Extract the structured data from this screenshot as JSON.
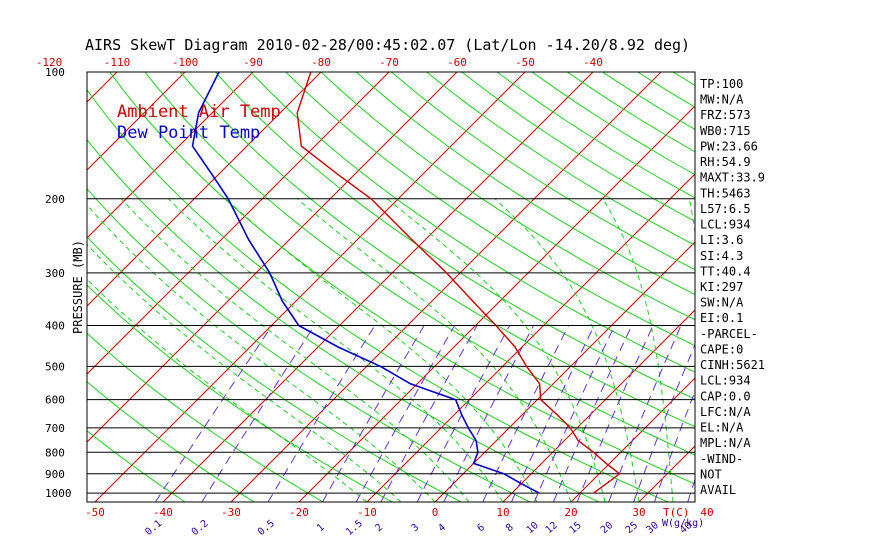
{
  "chart_data": {
    "type": "line",
    "title": "AIRS SkewT Diagram 2010-02-28/00:45:02.07 (Lat/Lon -14.20/8.92 deg)",
    "ylabel": "PRESSURE (MB)",
    "xlabel_bottom": "T(C)",
    "mixing_ratio_unit": "W(g/kg)",
    "pressure_ticks": [
      100,
      200,
      300,
      400,
      500,
      600,
      700,
      800,
      900,
      1000
    ],
    "pressure_range": [
      100,
      1050
    ],
    "top_temp_ticks": [
      -120,
      -110,
      -100,
      -90,
      -80,
      -70,
      -60,
      -50,
      -40
    ],
    "bottom_temp_ticks": [
      -50,
      -40,
      -30,
      -20,
      -10,
      0,
      10,
      20,
      30,
      40
    ],
    "mixing_ratio_ticks": [
      "0.1",
      "0.2",
      "0.5",
      "1",
      "1.5",
      "2",
      "3",
      "4",
      "6",
      "8",
      "10",
      "12",
      "15",
      "20",
      "25",
      "30",
      "40"
    ],
    "mixing_ratio_values": [
      0.1,
      0.2,
      0.5,
      1,
      1.5,
      2,
      3,
      4,
      6,
      8,
      10,
      12,
      15,
      20,
      25,
      30,
      40
    ],
    "series": [
      {
        "name": "Ambient Air Temp",
        "color": "#cc0000",
        "points": [
          {
            "p": 1000,
            "t": 22.0
          },
          {
            "p": 950,
            "t": 22.5
          },
          {
            "p": 900,
            "t": 23.0
          },
          {
            "p": 850,
            "t": 19.5
          },
          {
            "p": 800,
            "t": 16.0
          },
          {
            "p": 750,
            "t": 12.0
          },
          {
            "p": 700,
            "t": 9.0
          },
          {
            "p": 650,
            "t": 5.0
          },
          {
            "p": 600,
            "t": 0.5
          },
          {
            "p": 550,
            "t": -2.0
          },
          {
            "p": 500,
            "t": -6.5
          },
          {
            "p": 450,
            "t": -11.0
          },
          {
            "p": 400,
            "t": -17.0
          },
          {
            "p": 350,
            "t": -24.0
          },
          {
            "p": 300,
            "t": -32.0
          },
          {
            "p": 250,
            "t": -42.0
          },
          {
            "p": 200,
            "t": -54.0
          },
          {
            "p": 175,
            "t": -62.5
          },
          {
            "p": 150,
            "t": -72.0
          },
          {
            "p": 125,
            "t": -77.5
          },
          {
            "p": 100,
            "t": -81.5
          }
        ]
      },
      {
        "name": "Dew Point Temp",
        "color": "#0000cc",
        "points": [
          {
            "p": 1000,
            "t": 14.0
          },
          {
            "p": 950,
            "t": 10.0
          },
          {
            "p": 900,
            "t": 6.0
          },
          {
            "p": 850,
            "t": 0.0
          },
          {
            "p": 800,
            "t": -1.0
          },
          {
            "p": 750,
            "t": -3.0
          },
          {
            "p": 700,
            "t": -6.0
          },
          {
            "p": 650,
            "t": -9.0
          },
          {
            "p": 600,
            "t": -12.0
          },
          {
            "p": 550,
            "t": -21.0
          },
          {
            "p": 500,
            "t": -28.0
          },
          {
            "p": 450,
            "t": -37.0
          },
          {
            "p": 400,
            "t": -46.0
          },
          {
            "p": 350,
            "t": -52.0
          },
          {
            "p": 300,
            "t": -58.0
          },
          {
            "p": 250,
            "t": -66.0
          },
          {
            "p": 200,
            "t": -75.0
          },
          {
            "p": 175,
            "t": -81.0
          },
          {
            "p": 150,
            "t": -88.0
          },
          {
            "p": 125,
            "t": -92.0
          },
          {
            "p": 100,
            "t": -95.0
          }
        ]
      }
    ],
    "indices": [
      "TP:100",
      "MW:N/A",
      "FRZ:573",
      "WB0:715",
      "PW:23.66",
      "RH:54.9",
      "MAXT:33.9",
      "TH:5463",
      "L57:6.5",
      "LCL:934",
      "LI:3.6",
      "SI:4.3",
      "TT:40.4",
      "KI:297",
      "SW:N/A",
      "EI:0.1",
      "-PARCEL-",
      "CAPE:0",
      "CINH:5621",
      "LCL:934",
      "CAP:0.0",
      "LFC:N/A",
      "EL:N/A",
      "MPL:N/A",
      "-WIND-",
      "NOT",
      "AVAIL"
    ],
    "grid": true,
    "legend": "top-left"
  }
}
